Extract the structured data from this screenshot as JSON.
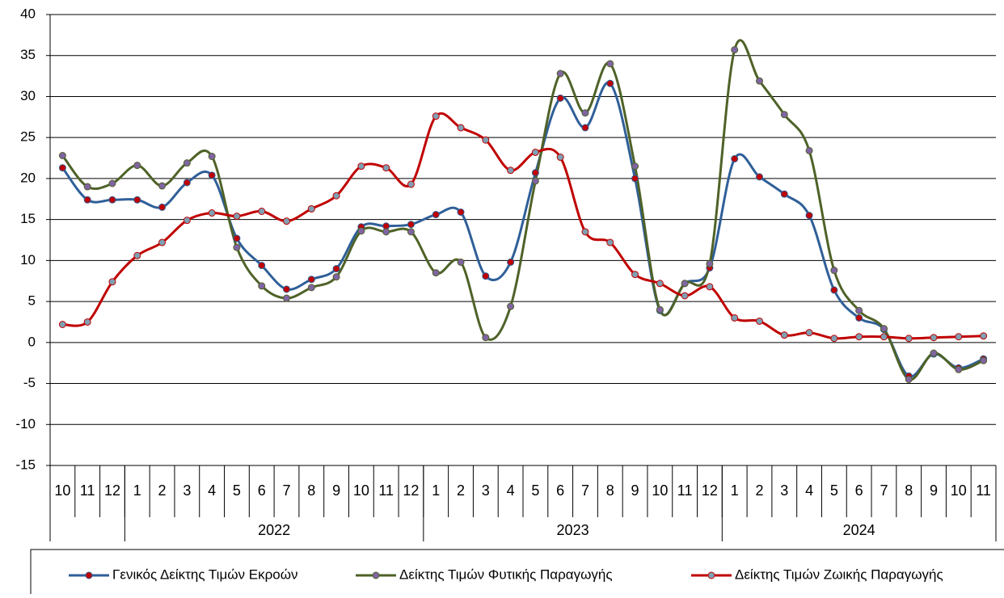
{
  "chart_data": {
    "type": "line",
    "categories": [
      "10",
      "11",
      "12",
      "1",
      "2",
      "3",
      "4",
      "5",
      "6",
      "7",
      "8",
      "9",
      "10",
      "11",
      "12",
      "1",
      "2",
      "3",
      "4",
      "5",
      "6",
      "7",
      "8",
      "9",
      "10",
      "11",
      "12",
      "1",
      "2",
      "3",
      "4",
      "5",
      "6",
      "7",
      "8",
      "9",
      "10",
      "11"
    ],
    "groups": [
      null,
      "2022",
      "2023",
      "2024"
    ],
    "ylim": [
      -15,
      40
    ],
    "yticks": [
      -15,
      -10,
      -5,
      0,
      5,
      10,
      15,
      20,
      25,
      30,
      35,
      40
    ],
    "grid": true,
    "smooth": true,
    "legend": "bottom",
    "series": [
      {
        "name": "Γενικός Δείκτης Τιμών Εκροών",
        "color": "#2f5f98",
        "marker_color": "#c00000",
        "values": [
          21.3,
          17.4,
          17.4,
          17.4,
          16.5,
          19.5,
          20.4,
          12.7,
          9.4,
          6.5,
          7.7,
          9.0,
          14.1,
          14.2,
          14.4,
          15.6,
          15.9,
          8.1,
          9.8,
          20.7,
          29.8,
          26.2,
          31.6,
          20.0,
          3.9,
          7.2,
          9.1,
          22.4,
          20.2,
          18.1,
          15.5,
          6.4,
          3.0,
          1.6,
          -4.1,
          -1.4,
          -3.1,
          -2.0
        ]
      },
      {
        "name": "Δείκτης Τιμών Φυτικής Παραγωγής",
        "color": "#4f6228",
        "marker_color": "#8064a2",
        "values": [
          22.8,
          19.0,
          19.4,
          21.6,
          19.1,
          21.9,
          22.7,
          11.6,
          6.9,
          5.4,
          6.7,
          8.0,
          13.6,
          13.5,
          13.5,
          8.5,
          9.8,
          0.6,
          4.4,
          19.7,
          32.8,
          28.0,
          34.0,
          21.5,
          4.0,
          7.2,
          9.6,
          35.7,
          31.9,
          27.8,
          23.4,
          8.8,
          3.9,
          1.7,
          -4.5,
          -1.3,
          -3.3,
          -2.2
        ]
      },
      {
        "name": "Δείκτης Τιμών Ζωικής Παραγωγής",
        "color": "#c00000",
        "marker_color": "#7f9fb3",
        "values": [
          2.2,
          2.5,
          7.4,
          10.6,
          12.2,
          14.9,
          15.8,
          15.4,
          16.0,
          14.8,
          16.3,
          17.9,
          21.5,
          21.3,
          19.3,
          27.6,
          26.2,
          24.7,
          21.0,
          23.2,
          22.6,
          13.5,
          12.2,
          8.3,
          7.2,
          5.7,
          6.8,
          3.0,
          2.6,
          0.9,
          1.2,
          0.5,
          0.7,
          0.7,
          0.5,
          0.6,
          0.7,
          0.8
        ]
      }
    ]
  }
}
